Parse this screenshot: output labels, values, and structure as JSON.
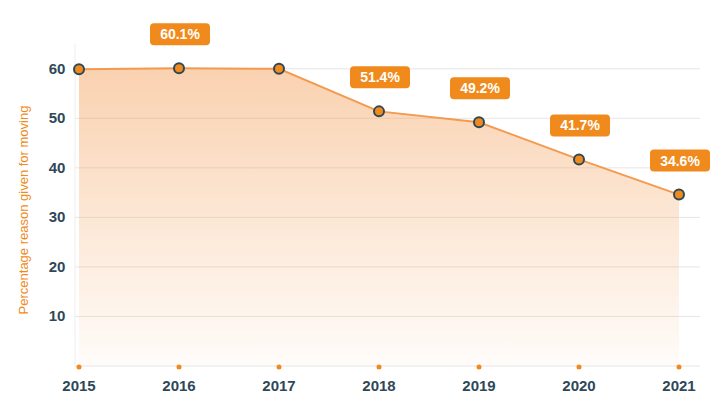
{
  "chart_data": {
    "type": "line",
    "y_label": "Percentage reason given for moving",
    "categories": [
      "2015",
      "2016",
      "2017",
      "2018",
      "2019",
      "2020",
      "2021"
    ],
    "values": [
      59.9,
      60.1,
      60.0,
      51.4,
      49.2,
      41.7,
      34.6
    ],
    "value_labels": [
      null,
      "60.1%",
      null,
      "51.4%",
      "49.2%",
      "41.7%",
      "34.6%"
    ],
    "color": "#f39a4f",
    "marker": "circle",
    "data_labels": true,
    "ylim": [
      0,
      65
    ],
    "yticks": [
      10,
      20,
      30,
      40,
      50,
      60
    ],
    "grid": true
  }
}
